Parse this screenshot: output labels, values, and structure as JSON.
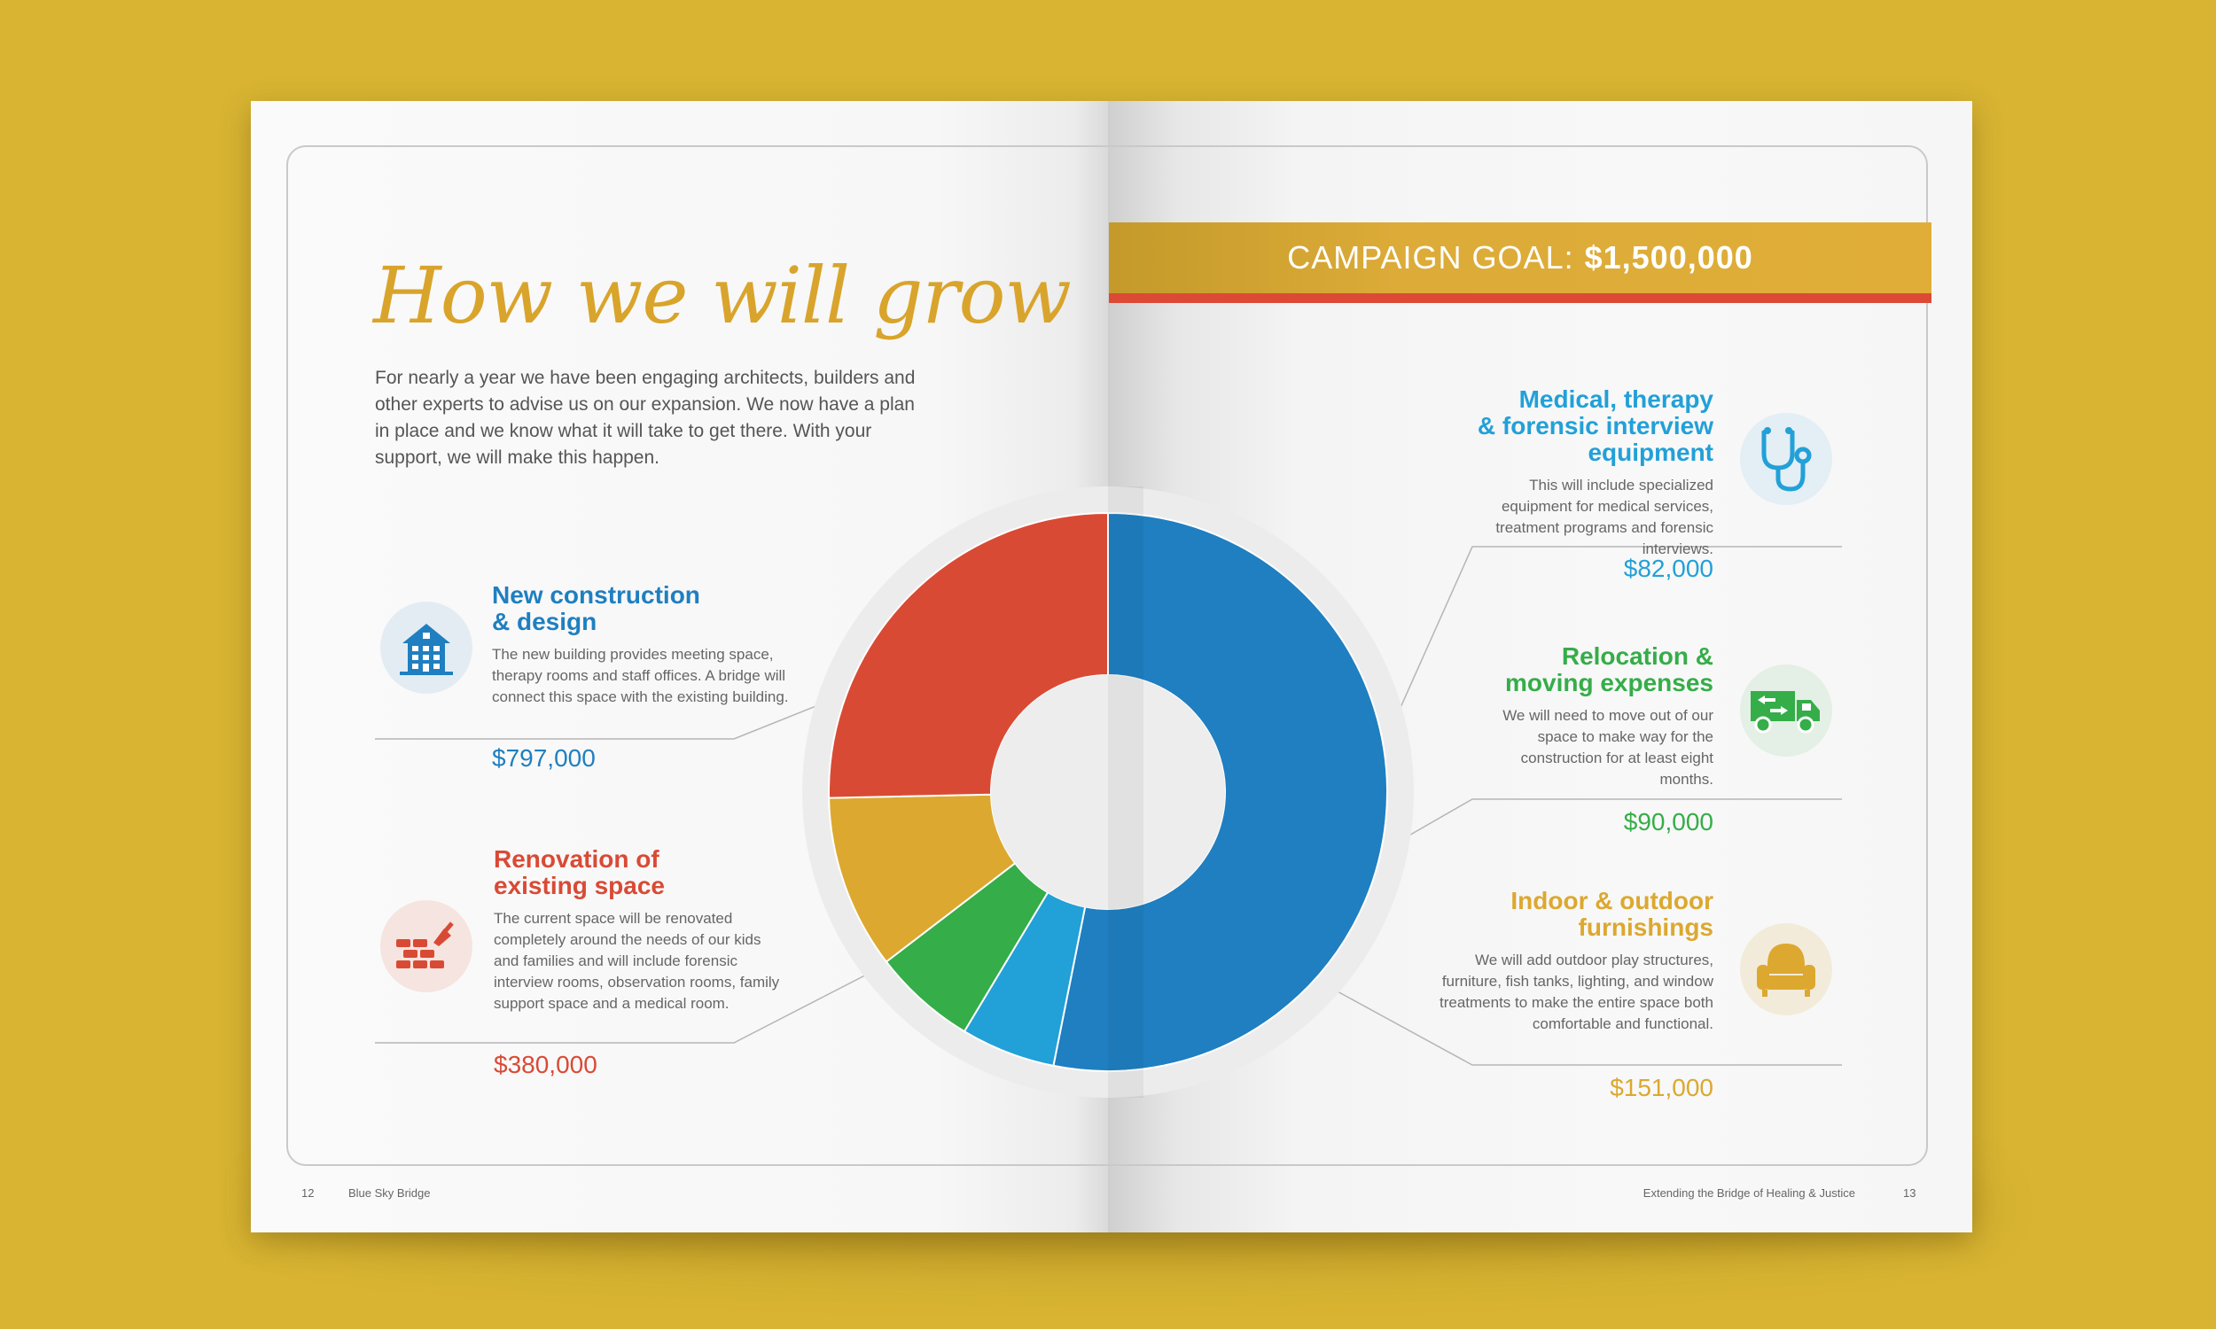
{
  "left_page": {
    "headline": "How we will grow",
    "intro": "For nearly a year we have been engaging architects, builders and other experts to advise us on our expansion. We now have a plan in place and we know what it will take to get there. With your support, we will make this happen.",
    "page_number": "12",
    "footer": "Blue Sky Bridge"
  },
  "right_page": {
    "campaign_label": "CAMPAIGN GOAL:",
    "campaign_amount": "$1,500,000",
    "page_number": "13",
    "footer": "Extending the Bridge of Healing & Justice"
  },
  "items": [
    {
      "key": "construction",
      "title_lines": [
        "New construction",
        "& design"
      ],
      "description": "The new building provides meeting space, therapy rooms and staff offices. A bridge will connect this space with the existing building.",
      "amount": "$797,000",
      "color": "#1f7fc0",
      "icon": "building-icon"
    },
    {
      "key": "renovation",
      "title_lines": [
        "Renovation of",
        "existing space"
      ],
      "description": "The current space will be renovated completely around the needs of our kids and families and will include forensic interview rooms, observation rooms, family support space and a medical room.",
      "amount": "$380,000",
      "color": "#d94a35",
      "icon": "bricks-trowel-icon"
    },
    {
      "key": "medical",
      "title_lines": [
        "Medical, therapy",
        "& forensic interview",
        "equipment"
      ],
      "description": "This will include specialized equipment for medical services, treatment programs and forensic interviews.",
      "amount": "$82,000",
      "color": "#22a0d8",
      "icon": "stethoscope-icon"
    },
    {
      "key": "relocation",
      "title_lines": [
        "Relocation &",
        "moving expenses"
      ],
      "description": "We will need to move out of our space to make way for the construction for at least eight months.",
      "amount": "$90,000",
      "color": "#35ad48",
      "icon": "moving-truck-icon"
    },
    {
      "key": "furnishings",
      "title_lines": [
        "Indoor & outdoor",
        "furnishings"
      ],
      "description": "We will add outdoor play structures, furniture, fish tanks, lighting, and window treatments to make the entire space both comfortable and functional.",
      "amount": "$151,000",
      "color": "#dca82f",
      "icon": "armchair-icon"
    }
  ],
  "chart_data": {
    "type": "pie",
    "style": "donut",
    "total": 1500000,
    "slices": [
      {
        "label": "New construction & design",
        "value": 797000,
        "color": "#1f7fc0"
      },
      {
        "label": "Medical, therapy & forensic interview equipment",
        "value": 82000,
        "color": "#22a0d8"
      },
      {
        "label": "Relocation & moving expenses",
        "value": 90000,
        "color": "#35ad48"
      },
      {
        "label": "Indoor & outdoor furnishings",
        "value": 151000,
        "color": "#dca82f"
      },
      {
        "label": "Renovation of existing space",
        "value": 380000,
        "color": "#d94a35"
      }
    ]
  }
}
